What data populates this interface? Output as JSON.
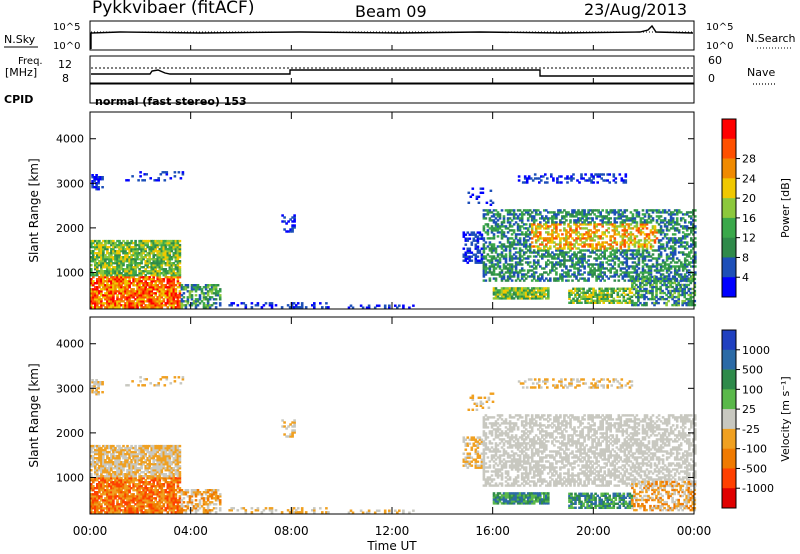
{
  "header": {
    "station": "Pykkvibaer (fitACF)",
    "beam": "Beam 09",
    "date": "23/Aug/2013"
  },
  "noise_panel": {
    "left_label": "N.Sky",
    "right_label": "N.Search",
    "tick_top": "10^5",
    "tick_bottom": "10^0"
  },
  "freq_panel": {
    "left_label_1": "Freq.",
    "left_label_2": "[MHz]",
    "left_tick_top": "12",
    "left_tick_bottom": "8",
    "right_label": "Nave",
    "right_tick_top": "60",
    "right_tick_bottom": "0"
  },
  "cpid": {
    "label": "CPID",
    "value": "normal (fast stereo) 153"
  },
  "chart_data": [
    {
      "type": "heatmap",
      "name": "power",
      "ylabel": "Slant Range [km]",
      "ylim": [
        180,
        4600
      ],
      "y_ticks": [
        "1000",
        "2000",
        "3000",
        "4000"
      ],
      "colorbar_label": "Power [dB]",
      "colorbar_ticks": [
        "4",
        "8",
        "12",
        "16",
        "20",
        "24",
        "28"
      ],
      "colors": [
        "#0000ff",
        "#1d4fb8",
        "#2f8a4a",
        "#3aa84a",
        "#8cc83c",
        "#f0c800",
        "#f08a00",
        "#ff5000",
        "#ff0000"
      ]
    },
    {
      "type": "heatmap",
      "name": "velocity",
      "ylabel": "Slant Range [km]",
      "ylim": [
        180,
        4600
      ],
      "y_ticks": [
        "1000",
        "2000",
        "3000",
        "4000"
      ],
      "colorbar_label": "Velocity [m s⁻¹]",
      "colorbar_ticks": [
        "1000",
        "500",
        "100",
        "25",
        "-25",
        "-100",
        "-500",
        "-1000"
      ],
      "colors": [
        "#2040c0",
        "#2b6aa6",
        "#2e8a4a",
        "#5ab84a",
        "#c8c8c0",
        "#f0a020",
        "#f07a00",
        "#ff4000",
        "#e00000"
      ]
    }
  ],
  "x_axis": {
    "label": "Time UT",
    "ticks": [
      "00:00",
      "04:00",
      "08:00",
      "12:00",
      "16:00",
      "20:00",
      "00:00"
    ]
  }
}
